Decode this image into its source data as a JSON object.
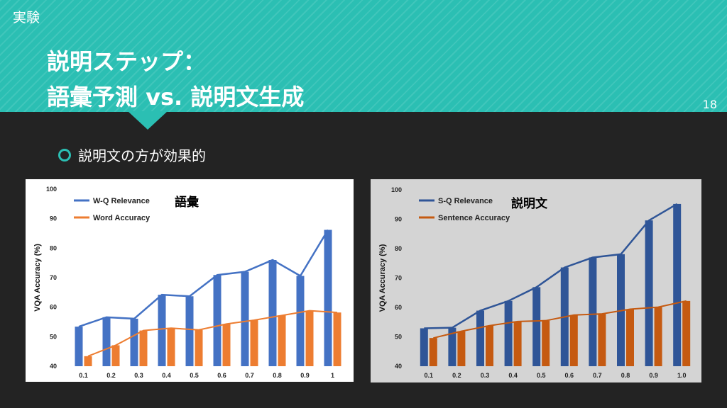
{
  "header": {
    "section_label": "実験",
    "title_line1": "説明ステップ：",
    "title_line2": "語彙予測 vs. 説明文生成",
    "page_number": "18"
  },
  "bullet": {
    "text": "説明文の方が効果的"
  },
  "colors": {
    "header_bg": "#2bbfb3",
    "body_bg": "#232323",
    "blue": "#4472c4",
    "orange": "#ed7d31",
    "orange_dark": "#c55a11",
    "blue_dark": "#2f5597"
  },
  "chart_data": [
    {
      "type": "bar",
      "annotation": "語彙",
      "ylabel": "VQA Accuracy (%)",
      "ylim": [
        40,
        100
      ],
      "yticks": [
        "40",
        "50",
        "60",
        "70",
        "80",
        "90",
        "100"
      ],
      "categories": [
        "0.1",
        "0.2",
        "0.3",
        "0.4",
        "0.5",
        "0.6",
        "0.7",
        "0.8",
        "0.9",
        "1"
      ],
      "series": [
        {
          "name": "W-Q Relevance",
          "values": [
            53.4,
            56.6,
            56.1,
            64.2,
            63.7,
            70.9,
            72.0,
            76.0,
            70.6,
            86.2
          ]
        },
        {
          "name": "Word Accuracy",
          "values": [
            43.4,
            47.1,
            52.1,
            52.9,
            52.3,
            54.3,
            55.6,
            57.2,
            58.8,
            58.2
          ]
        }
      ],
      "legend": "top-left",
      "grid": false
    },
    {
      "type": "bar",
      "annotation": "説明文",
      "ylabel": "VQA Accuracy (%)",
      "ylim": [
        40,
        100
      ],
      "yticks": [
        "40",
        "50",
        "60",
        "70",
        "80",
        "90",
        "100"
      ],
      "categories": [
        "0.1",
        "0.2",
        "0.3",
        "0.4",
        "0.5",
        "0.6",
        "0.7",
        "0.8",
        "0.9",
        "1.0"
      ],
      "series": [
        {
          "name": "S-Q Relevance",
          "values": [
            52.9,
            53.1,
            58.9,
            62.2,
            66.9,
            73.6,
            77.0,
            78.1,
            89.6,
            95.2
          ]
        },
        {
          "name": "Sentence Accuracy",
          "values": [
            49.6,
            51.9,
            53.8,
            55.2,
            55.5,
            57.4,
            57.8,
            59.4,
            60.1,
            62.2
          ]
        }
      ],
      "legend": "top-left",
      "grid": false
    }
  ]
}
